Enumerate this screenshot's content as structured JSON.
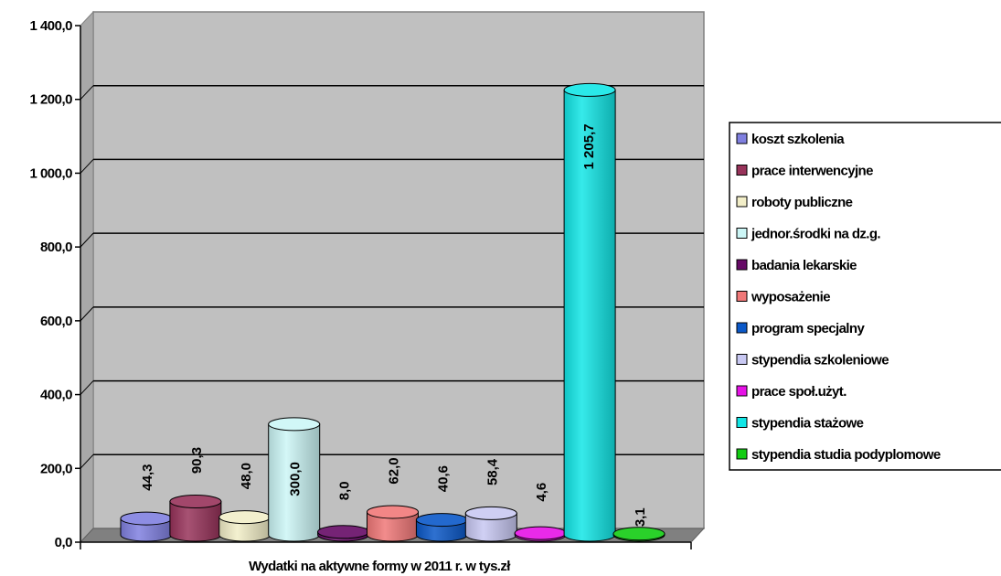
{
  "chart_data": {
    "type": "bar",
    "xlabel": "Wydatki na aktywne formy w 2011 r. w tys.zł",
    "ylabel": "",
    "ylim": [
      0,
      1400
    ],
    "yticks": [
      0,
      200,
      400,
      600,
      800,
      1000,
      1200,
      1400
    ],
    "ytick_labels": [
      "0,0",
      "200,0",
      "400,0",
      "600,0",
      "800,0",
      "1 000,0",
      "1 200,0",
      "1 400,0"
    ],
    "grid": true,
    "legend_position": "right",
    "series": [
      {
        "name": "koszt szkolenia",
        "value": 44.3,
        "label": "44,3",
        "color": "#8080e0"
      },
      {
        "name": "prace interwencyjne",
        "value": 90.3,
        "label": "90,3",
        "color": "#98335a"
      },
      {
        "name": "roboty publiczne",
        "value": 48.0,
        "label": "48,0",
        "color": "#f2eec8"
      },
      {
        "name": "jednor.środki na dz.g.",
        "value": 300.0,
        "label": "300,0",
        "color": "#ccf6f6"
      },
      {
        "name": "badania lekarskie",
        "value": 8.0,
        "label": "8,0",
        "color": "#660a66"
      },
      {
        "name": "wyposażenie",
        "value": 62.0,
        "label": "62,0",
        "color": "#f07878"
      },
      {
        "name": "program specjalny",
        "value": 40.6,
        "label": "40,6",
        "color": "#0a58c8"
      },
      {
        "name": "stypendia szkoleniowe",
        "value": 58.4,
        "label": "58,4",
        "color": "#c8c8f2"
      },
      {
        "name": "prace społ.użyt.",
        "value": 4.6,
        "label": "4,6",
        "color": "#e612e6"
      },
      {
        "name": "stypendia stażowe",
        "value": 1205.7,
        "label": "1 205,7",
        "color": "#12e6e6"
      },
      {
        "name": "stypendia studia podyplomowe",
        "value": 3.1,
        "label": "3,1",
        "color": "#12cc12"
      }
    ]
  }
}
